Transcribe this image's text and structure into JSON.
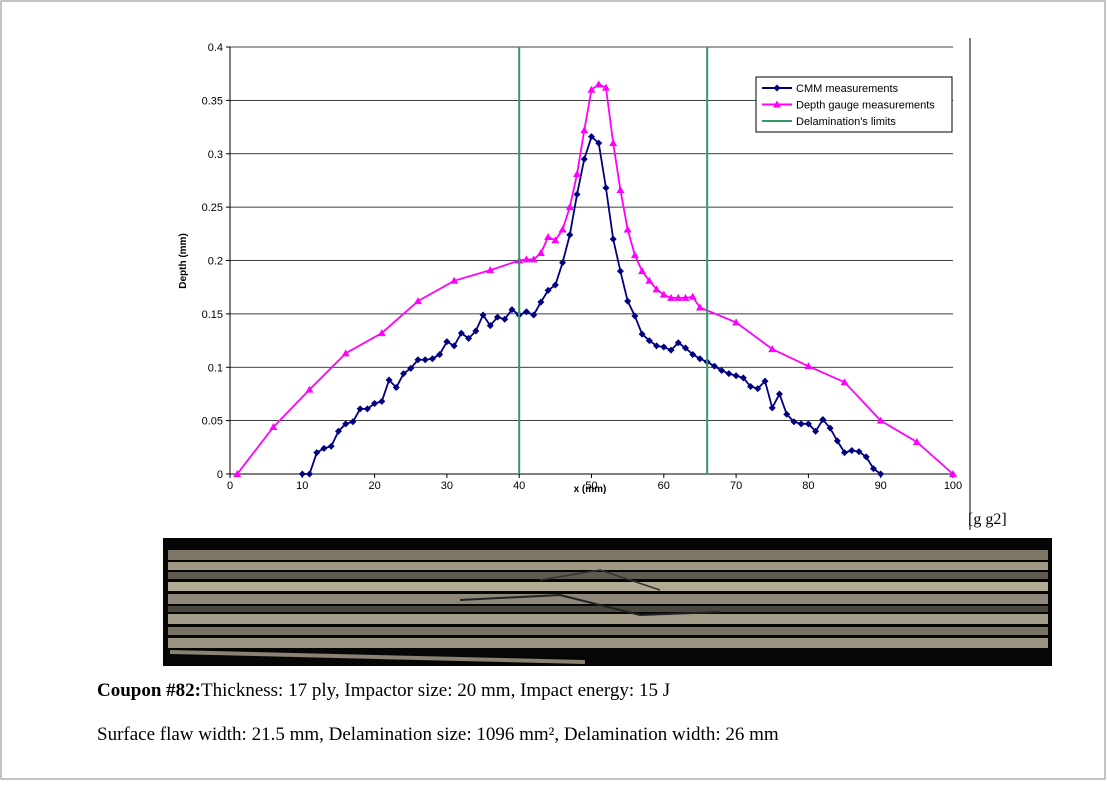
{
  "chart_data": {
    "type": "line",
    "xlabel": "x (mm)",
    "ylabel": "Depth (mm)",
    "xlim": [
      0,
      100
    ],
    "xticks": [
      0,
      10,
      20,
      30,
      40,
      50,
      60,
      70,
      80,
      90,
      100
    ],
    "ylim": [
      0,
      0.4
    ],
    "yticks": [
      0,
      0.05,
      0.1,
      0.15,
      0.2,
      0.25,
      0.3,
      0.35,
      0.4
    ],
    "grid": true,
    "legend": "upper right",
    "series": [
      {
        "name": "CMM measurements",
        "color": "#000080",
        "marker": "diamond",
        "x": [
          10,
          11,
          12,
          13,
          14,
          15,
          16,
          17,
          18,
          19,
          20,
          21,
          22,
          23,
          24,
          25,
          26,
          27,
          28,
          29,
          30,
          31,
          32,
          33,
          34,
          35,
          36,
          37,
          38,
          39,
          40,
          41,
          42,
          43,
          44,
          45,
          46,
          47,
          48,
          49,
          50,
          51,
          52,
          53,
          54,
          55,
          56,
          57,
          58,
          59,
          60,
          61,
          62,
          63,
          64,
          65,
          66,
          67,
          68,
          69,
          70,
          71,
          72,
          73,
          74,
          75,
          76,
          77,
          78,
          79,
          80,
          81,
          82,
          83,
          84,
          85,
          86,
          87,
          88,
          89,
          90
        ],
        "values": [
          0,
          0,
          0.02,
          0.024,
          0.026,
          0.04,
          0.047,
          0.049,
          0.061,
          0.061,
          0.066,
          0.068,
          0.088,
          0.081,
          0.094,
          0.099,
          0.107,
          0.107,
          0.108,
          0.112,
          0.124,
          0.12,
          0.132,
          0.127,
          0.134,
          0.149,
          0.139,
          0.147,
          0.145,
          0.154,
          0.149,
          0.152,
          0.149,
          0.161,
          0.172,
          0.177,
          0.198,
          0.224,
          0.262,
          0.295,
          0.316,
          0.31,
          0.268,
          0.22,
          0.19,
          0.162,
          0.148,
          0.131,
          0.125,
          0.12,
          0.119,
          0.116,
          0.123,
          0.118,
          0.112,
          0.108,
          0.105,
          0.101,
          0.097,
          0.094,
          0.092,
          0.09,
          0.082,
          0.08,
          0.087,
          0.062,
          0.075,
          0.056,
          0.049,
          0.047,
          0.047,
          0.04,
          0.051,
          0.043,
          0.031,
          0.02,
          0.022,
          0.021,
          0.016,
          0.005,
          0
        ]
      },
      {
        "name": "Depth gauge measurements",
        "color": "#ff00ff",
        "marker": "triangle",
        "x": [
          1,
          6,
          11,
          16,
          21,
          26,
          31,
          36,
          40,
          41,
          42,
          43,
          44,
          45,
          46,
          47,
          48,
          49,
          50,
          51,
          52,
          53,
          54,
          55,
          56,
          57,
          58,
          59,
          60,
          61,
          62,
          63,
          64,
          65,
          70,
          75,
          80,
          85,
          90,
          95,
          100
        ],
        "values": [
          0,
          0.044,
          0.079,
          0.113,
          0.132,
          0.162,
          0.181,
          0.191,
          0.2,
          0.201,
          0.201,
          0.207,
          0.222,
          0.219,
          0.229,
          0.25,
          0.281,
          0.322,
          0.36,
          0.365,
          0.362,
          0.31,
          0.266,
          0.229,
          0.205,
          0.19,
          0.181,
          0.173,
          0.168,
          0.165,
          0.165,
          0.165,
          0.166,
          0.156,
          0.142,
          0.117,
          0.101,
          0.086,
          0.05,
          0.03,
          0
        ]
      },
      {
        "name": "Delamination's limits",
        "color": "#339966",
        "marker": "vline",
        "x": [
          40,
          66
        ]
      }
    ]
  },
  "side_note": "[g g2]",
  "caption": {
    "label": "Coupon #82:",
    "text": "Thickness: 17 ply, Impactor size: 20 mm, Impact energy: 15 J",
    "line2": "Surface flaw width: 21.5 mm,  Delamination size: 1096 mm², Delamination width: 26 mm"
  }
}
